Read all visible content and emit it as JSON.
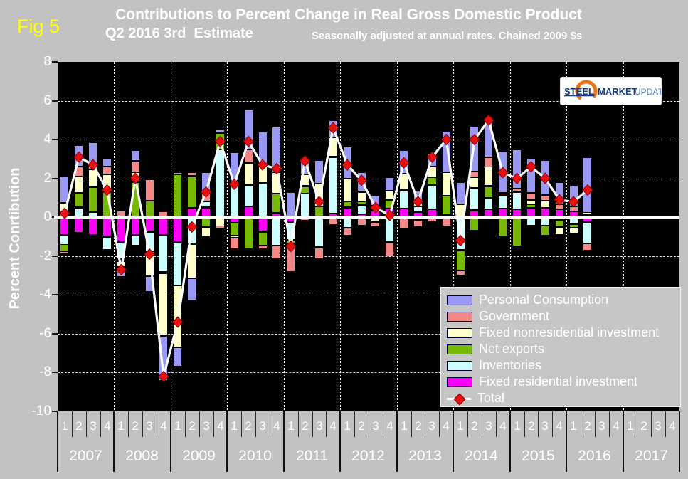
{
  "fig_label": "Fig 5",
  "title": {
    "line1": "Contributions to Percent Change in Real Gross Domestic Product",
    "line2": "Q2 2016 3rd  Estimate",
    "subtitle": "Seasonally adjusted at annual rates. Chained 2009 $s"
  },
  "y_axis": {
    "title": "Percent Conrtibution",
    "ticks": [
      8,
      6,
      4,
      2,
      0,
      -2,
      -4,
      -6,
      -8,
      -10
    ]
  },
  "x_axis": {
    "years": [
      "2007",
      "2008",
      "2009",
      "2010",
      "2011",
      "2012",
      "2013",
      "2014",
      "2015",
      "2016",
      "2017"
    ],
    "quarters": [
      "1",
      "2",
      "3",
      "4"
    ]
  },
  "logo": {
    "word1": "STEEL",
    "word2": "MARKET",
    "word3": "UPDATE"
  },
  "colors": {
    "page_bg": "#c2c2c2",
    "plot_bg": "#000000",
    "personal_consumption": "#9999f5",
    "government": "#f48888",
    "fixed_nonresidential": "#ffffcc",
    "net_exports": "#77b800",
    "inventories": "#ccffff",
    "fixed_residential": "#ff00ff",
    "total_line": "#ffffff",
    "total_marker": "#e81111",
    "fig_label": "#ffff00",
    "logo_navy": "#163a7d",
    "logo_light_blue": "#4f81bd",
    "logo_orange": "#ec7014"
  },
  "legend": [
    {
      "label": "Personal Consumption",
      "color": "#9999f5",
      "marker": "box"
    },
    {
      "label": "Government",
      "color": "#f48888",
      "marker": "box"
    },
    {
      "label": "Fixed nonresidential investment",
      "color": "#ffffcc",
      "marker": "box"
    },
    {
      "label": "Net exports",
      "color": "#77b800",
      "marker": "box"
    },
    {
      "label": "Inventories",
      "color": "#ccffff",
      "marker": "box"
    },
    {
      "label": "Fixed residential investment",
      "color": "#ff00ff",
      "marker": "box"
    },
    {
      "label": "Total",
      "color": "#e81111",
      "marker": "line-diamond"
    }
  ],
  "chart_data": {
    "type": "bar",
    "subtype": "stacked-bars-with-total-line",
    "title": "Contributions to Percent Change in Real Gross Domestic Product, Q2 2016 3rd Estimate",
    "xlabel": "",
    "ylabel": "Percent Conrtibution",
    "ylim": [
      -10,
      8
    ],
    "gridlines_y": [
      6,
      4,
      2,
      -2,
      -4,
      -6,
      -8
    ],
    "grid": "on",
    "legend_position": "bottom-right",
    "quarter_slots": 44,
    "categories": [
      "2007 Q1",
      "2007 Q2",
      "2007 Q3",
      "2007 Q4",
      "2008 Q1",
      "2008 Q2",
      "2008 Q3",
      "2008 Q4",
      "2009 Q1",
      "2009 Q2",
      "2009 Q3",
      "2009 Q4",
      "2010 Q1",
      "2010 Q2",
      "2010 Q3",
      "2010 Q4",
      "2011 Q1",
      "2011 Q2",
      "2011 Q3",
      "2011 Q4",
      "2012 Q1",
      "2012 Q2",
      "2012 Q3",
      "2012 Q4",
      "2013 Q1",
      "2013 Q2",
      "2013 Q3",
      "2013 Q4",
      "2014 Q1",
      "2014 Q2",
      "2014 Q3",
      "2014 Q4",
      "2015 Q1",
      "2015 Q2",
      "2015 Q3",
      "2015 Q4",
      "2016 Q1",
      "2016 Q2"
    ],
    "stack_order_note": "series listed bottom-to-top from the zero line",
    "series": [
      {
        "name": "Fixed residential investment",
        "color": "#ff00ff",
        "values": [
          -0.9,
          -0.8,
          -0.9,
          -1.0,
          -1.3,
          -0.9,
          -0.75,
          -0.9,
          -1.3,
          0.5,
          0.5,
          -0.05,
          -0.3,
          0.55,
          -0.75,
          0.2,
          -0.25,
          -0.05,
          0.05,
          0.2,
          0.5,
          0.15,
          0.35,
          0.45,
          0.45,
          0.25,
          0.4,
          -0.05,
          0.0,
          0.35,
          0.4,
          0.45,
          0.4,
          0.45,
          0.5,
          0.4,
          0.3,
          -0.25
        ]
      },
      {
        "name": "Inventories",
        "color": "#ccffff",
        "values": [
          -0.5,
          0.5,
          0.25,
          -0.65,
          -0.85,
          -0.55,
          -1.0,
          -1.9,
          -2.2,
          -1.4,
          0.3,
          3.5,
          1.9,
          1.1,
          1.75,
          -1.45,
          -0.9,
          1.25,
          -1.55,
          2.9,
          -0.55,
          0.45,
          0.05,
          -1.3,
          0.9,
          0.3,
          1.25,
          0.1,
          -1.7,
          1.15,
          0.6,
          0.7,
          0.8,
          -0.45,
          -0.45,
          -0.15,
          -0.35,
          -1.1
        ]
      },
      {
        "name": "Net exports",
        "color": "#77b800",
        "values": [
          -0.35,
          0.75,
          1.3,
          1.3,
          -0.1,
          1.8,
          0.85,
          -0.1,
          2.2,
          1.6,
          -0.5,
          0.85,
          -0.65,
          -1.65,
          -0.7,
          1.0,
          -0.2,
          0.35,
          0.5,
          0.0,
          0.3,
          0.2,
          0.2,
          0.45,
          0.05,
          -0.15,
          0.4,
          1.0,
          -1.05,
          -0.7,
          0.6,
          -1.0,
          -1.5,
          0.2,
          -0.5,
          -0.35,
          -0.2,
          0.1
        ]
      },
      {
        "name": "Fixed nonresidential investment",
        "color": "#ffffcc",
        "values": [
          0.75,
          0.85,
          0.9,
          0.9,
          -0.3,
          0.5,
          -1.3,
          -3.2,
          -3.2,
          -1.75,
          -0.5,
          -0.4,
          -0.1,
          1.15,
          0.85,
          1.1,
          0.05,
          0.6,
          1.2,
          1.0,
          1.2,
          0.5,
          -0.25,
          0.45,
          0.85,
          0.25,
          0.55,
          1.2,
          0.65,
          0.55,
          1.0,
          -0.1,
          0.1,
          0.25,
          0.35,
          -0.4,
          -0.3,
          0.15
        ]
      },
      {
        "name": "Government",
        "color": "#f48888",
        "values": [
          -0.15,
          0.5,
          0.3,
          0.4,
          0.35,
          0.6,
          1.1,
          0.3,
          0.1,
          0.2,
          0.4,
          -0.15,
          -0.6,
          0.7,
          -0.2,
          -0.7,
          -1.45,
          -0.1,
          -0.6,
          -0.4,
          -0.4,
          -0.45,
          -0.25,
          -0.7,
          -0.6,
          -0.35,
          -0.25,
          -0.4,
          -0.25,
          0.3,
          0.5,
          0.1,
          0.2,
          0.35,
          0.3,
          0.25,
          0.25,
          -0.35
        ]
      },
      {
        "name": "Personal Consumption",
        "color": "#9999f5",
        "values": [
          1.4,
          1.1,
          1.1,
          0.4,
          -0.5,
          0.55,
          -0.8,
          -2.3,
          -1.0,
          -1.15,
          1.1,
          0.15,
          1.45,
          2.05,
          1.8,
          2.35,
          1.25,
          0.85,
          1.2,
          0.9,
          1.65,
          1.0,
          0.55,
          0.7,
          1.2,
          0.55,
          0.7,
          2.15,
          1.15,
          2.35,
          1.9,
          2.15,
          2.0,
          1.8,
          1.8,
          1.15,
          1.1,
          2.85
        ]
      }
    ],
    "total_series": {
      "name": "Total",
      "line_color": "#ffffff",
      "marker": "diamond",
      "marker_color": "#e81111",
      "values": [
        0.2,
        3.1,
        2.7,
        1.4,
        -2.7,
        2.0,
        -1.9,
        -8.2,
        -5.4,
        -0.5,
        1.3,
        3.9,
        1.7,
        3.9,
        2.7,
        2.5,
        -1.5,
        2.9,
        0.8,
        4.6,
        2.7,
        1.9,
        0.5,
        0.1,
        2.8,
        0.8,
        3.1,
        4.0,
        -1.2,
        4.0,
        5.0,
        2.3,
        2.0,
        2.6,
        2.0,
        0.9,
        0.8,
        1.4
      ]
    }
  }
}
